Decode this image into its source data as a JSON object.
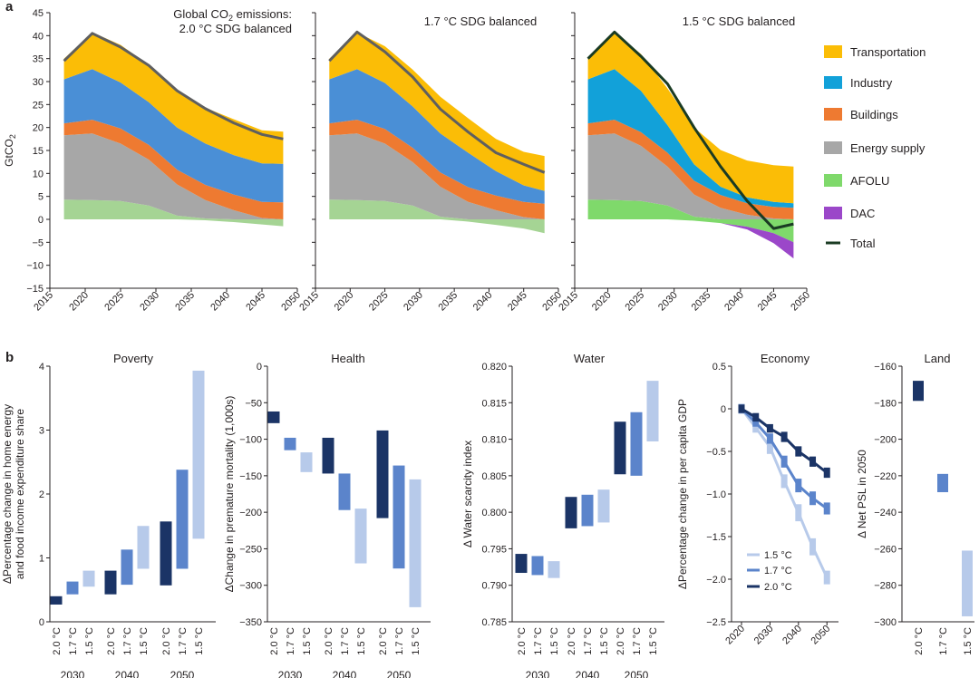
{
  "panel_a_label": "a",
  "panel_b_label": "b",
  "colors": {
    "Transportation": "#fbbd06",
    "Industry": "#4a8fd6",
    "Industry_15": "#12a1d9",
    "Buildings": "#ee7a31",
    "Energy supply": "#a7a7a7",
    "AFOLU": "#a5d494",
    "AFOLU_15": "#7fd96b",
    "DAC": "#9b47c9",
    "Total_line": "#5f5f5f",
    "Total_line_15": "#1a3b23",
    "dark": "#1b3466",
    "mid": "#5b84cb",
    "light": "#b7caea"
  },
  "chart_data": [
    {
      "type": "area",
      "id": "a1",
      "title_line1": "Global CO",
      "title_sub": "2",
      "title_line1_end": " emissions:",
      "title_line2": "2.0 °C SDG balanced",
      "ylabel": "GtCO",
      "ylabel_sub": "2",
      "ylim": [
        -15,
        45
      ],
      "yticks": [
        "−15",
        "−10",
        "−5",
        "0",
        "5",
        "10",
        "15",
        "20",
        "25",
        "30",
        "35",
        "40",
        "45"
      ],
      "xticks": [
        "2015",
        "2020",
        "2025",
        "2030",
        "2035",
        "2040",
        "2045",
        "2050"
      ],
      "x": [
        2017,
        2021,
        2025,
        2029,
        2033,
        2037,
        2041,
        2045,
        2048
      ],
      "stack_pos": {
        "AFOLU": [
          4.3,
          4.2,
          4.0,
          3.0,
          0.8,
          0.2,
          0.0,
          0.0,
          0.0
        ],
        "Energy supply": [
          14.0,
          14.5,
          12.5,
          10.0,
          6.8,
          4.0,
          2.0,
          0.3,
          0.0
        ],
        "Buildings": [
          2.6,
          3.0,
          3.3,
          3.2,
          3.2,
          3.3,
          3.4,
          3.5,
          3.7
        ],
        "Industry": [
          9.6,
          11.0,
          10.0,
          9.3,
          9.2,
          9.0,
          8.6,
          8.4,
          8.4
        ],
        "Transportation": [
          4.5,
          8.0,
          8.2,
          8.1,
          8.1,
          7.8,
          7.8,
          7.2,
          7.0
        ]
      },
      "stack_neg": {
        "AFOLU": [
          0,
          0,
          0,
          0,
          0,
          -0.2,
          -0.6,
          -1.1,
          -1.5
        ],
        "DAC": [
          0,
          0,
          0,
          0,
          0,
          0,
          0,
          0,
          0
        ]
      },
      "total": [
        34.5,
        40.5,
        37.5,
        33.5,
        28.0,
        24.1,
        21.0,
        18.5,
        17.5
      ]
    },
    {
      "type": "area",
      "id": "a2",
      "title": "1.7 °C SDG balanced",
      "ylim": [
        -15,
        45
      ],
      "xticks": [
        "2015",
        "2020",
        "2025",
        "2030",
        "2035",
        "2040",
        "2045",
        "2050"
      ],
      "x": [
        2017,
        2021,
        2025,
        2029,
        2033,
        2037,
        2041,
        2045,
        2048
      ],
      "stack_pos": {
        "AFOLU": [
          4.3,
          4.2,
          4.0,
          3.0,
          0.6,
          0.0,
          0.0,
          0.0,
          0.0
        ],
        "Energy supply": [
          14.0,
          14.5,
          12.5,
          9.5,
          6.5,
          3.8,
          2.0,
          0.5,
          0.0
        ],
        "Buildings": [
          2.6,
          3.0,
          3.2,
          3.1,
          3.1,
          3.2,
          3.2,
          3.3,
          3.4
        ],
        "Industry": [
          9.6,
          11.0,
          10.0,
          9.0,
          8.5,
          7.5,
          5.3,
          3.6,
          2.8
        ],
        "Transportation": [
          4.5,
          8.0,
          8.0,
          8.0,
          8.0,
          7.5,
          7.0,
          7.3,
          7.6
        ]
      },
      "stack_neg": {
        "AFOLU": [
          0,
          0,
          0,
          0,
          0,
          -0.5,
          -1.2,
          -2.0,
          -3.0
        ],
        "DAC": [
          0,
          0,
          0,
          0,
          0,
          0,
          0,
          0,
          0
        ]
      },
      "total": [
        34.5,
        40.8,
        36.5,
        31.0,
        24.0,
        19.0,
        14.5,
        12.0,
        10.2
      ]
    },
    {
      "type": "area",
      "id": "a3",
      "title": "1.5 °C SDG balanced",
      "ylim": [
        -15,
        45
      ],
      "xticks": [
        "2015",
        "2020",
        "2025",
        "2030",
        "2035",
        "2040",
        "2045",
        "2050"
      ],
      "x": [
        2017,
        2021,
        2025,
        2029,
        2033,
        2037,
        2041,
        2045,
        2048
      ],
      "stack_pos": {
        "AFOLU": [
          4.3,
          4.2,
          4.0,
          3.0,
          0.6,
          0.0,
          0.0,
          0.0,
          0.0
        ],
        "Energy supply": [
          14.0,
          14.5,
          12.0,
          8.5,
          4.8,
          2.5,
          1.0,
          0.2,
          0.0
        ],
        "Buildings": [
          2.6,
          3.0,
          3.0,
          3.0,
          3.0,
          2.8,
          2.5,
          2.5,
          2.5
        ],
        "Industry": [
          9.6,
          11.0,
          9.0,
          6.0,
          3.6,
          1.8,
          1.3,
          1.1,
          1.0
        ],
        "Transportation": [
          4.5,
          8.0,
          8.0,
          8.0,
          8.0,
          8.0,
          8.0,
          8.0,
          8.0
        ]
      },
      "stack_neg": {
        "AFOLU": [
          0,
          0,
          0,
          0,
          -0.3,
          -0.8,
          -1.6,
          -3.0,
          -5.0
        ],
        "DAC": [
          0,
          0,
          0,
          0,
          0,
          0,
          -0.6,
          -2.2,
          -3.5
        ]
      },
      "total": [
        35.0,
        40.8,
        35.5,
        29.5,
        20.0,
        11.5,
        4.0,
        -2.0,
        -1.0
      ],
      "legend": [
        "Transportation",
        "Industry",
        "Buildings",
        "Energy supply",
        "AFOLU",
        "DAC",
        "Total"
      ]
    },
    {
      "type": "bar",
      "id": "poverty",
      "title": "Poverty",
      "ylabel_line1": "ΔPercentage change in home energy",
      "ylabel_line2": "and food income expenditure share",
      "ylim": [
        0,
        4
      ],
      "yticks": [
        "0",
        "1",
        "2",
        "3",
        "4"
      ],
      "groups": [
        "2030",
        "2040",
        "2050"
      ],
      "series_labels": [
        "2.0 °C",
        "1.7 °C",
        "1.5 °C"
      ],
      "ranges": [
        [
          [
            0.27,
            0.4
          ],
          [
            0.43,
            0.63
          ],
          [
            0.55,
            0.8
          ]
        ],
        [
          [
            0.43,
            0.8
          ],
          [
            0.58,
            1.13
          ],
          [
            0.83,
            1.5
          ]
        ],
        [
          [
            0.57,
            1.57
          ],
          [
            0.83,
            2.38
          ],
          [
            1.3,
            3.93
          ]
        ]
      ]
    },
    {
      "type": "bar",
      "id": "health",
      "title": "Health",
      "ylabel": "ΔChange in premature mortality (1,000s)",
      "ylim": [
        -350,
        0
      ],
      "yticks": [
        "−350",
        "−300",
        "−250",
        "−200",
        "−150",
        "−100",
        "−50",
        "0"
      ],
      "groups": [
        "2030",
        "2040",
        "2050"
      ],
      "series_labels": [
        "2.0 °C",
        "1.7 °C",
        "1.5 °C"
      ],
      "ranges": [
        [
          [
            -78,
            -62
          ],
          [
            -115,
            -98
          ],
          [
            -145,
            -118
          ]
        ],
        [
          [
            -147,
            -98
          ],
          [
            -197,
            -147
          ],
          [
            -270,
            -195
          ]
        ],
        [
          [
            -208,
            -88
          ],
          [
            -277,
            -136
          ],
          [
            -330,
            -155
          ]
        ]
      ]
    },
    {
      "type": "bar",
      "id": "water",
      "title": "Water",
      "ylabel": "Δ Water scarcity index",
      "ylim": [
        0.785,
        0.82
      ],
      "yticks": [
        "0.785",
        "0.790",
        "0.795",
        "0.800",
        "0.805",
        "0.810",
        "0.815",
        "0.820"
      ],
      "groups": [
        "2030",
        "2040",
        "2050"
      ],
      "series_labels": [
        "2.0 °C",
        "1.7 °C",
        "1.5 °C"
      ],
      "ranges": [
        [
          [
            0.7917,
            0.7943
          ],
          [
            0.7914,
            0.794
          ],
          [
            0.791,
            0.7933
          ]
        ],
        [
          [
            0.7978,
            0.8021
          ],
          [
            0.7981,
            0.8024
          ],
          [
            0.7986,
            0.8031
          ]
        ],
        [
          [
            0.8052,
            0.8124
          ],
          [
            0.805,
            0.8137
          ],
          [
            0.8097,
            0.818
          ]
        ]
      ]
    },
    {
      "type": "line",
      "id": "economy",
      "title": "Economy",
      "ylabel": "ΔPercentage change in per capita GDP",
      "ylim": [
        -2.5,
        0.5
      ],
      "yticks": [
        "−2.5",
        "−2.0",
        "−1.5",
        "−1.0",
        "−0.5",
        "0",
        "0.5"
      ],
      "xticks": [
        "2020",
        "2030",
        "2040",
        "2050"
      ],
      "x": [
        2020,
        2025,
        2030,
        2035,
        2040,
        2045,
        2050
      ],
      "series": [
        {
          "name": "1.5 °C",
          "values": [
            0,
            -0.22,
            -0.45,
            -0.85,
            -1.22,
            -1.62,
            -1.98
          ],
          "range": [
            0.06,
            0.06,
            0.08,
            0.08,
            0.1,
            0.1,
            0.08
          ]
        },
        {
          "name": "1.7 °C",
          "values": [
            0,
            -0.16,
            -0.35,
            -0.62,
            -0.9,
            -1.05,
            -1.17
          ],
          "range": [
            0.05,
            0.05,
            0.06,
            0.07,
            0.08,
            0.08,
            0.07
          ]
        },
        {
          "name": "2.0 °C",
          "values": [
            0,
            -0.1,
            -0.23,
            -0.33,
            -0.5,
            -0.62,
            -0.75
          ],
          "range": [
            0.05,
            0.05,
            0.05,
            0.06,
            0.06,
            0.06,
            0.06
          ]
        }
      ]
    },
    {
      "type": "bar",
      "id": "land",
      "title": "Land",
      "ylabel": "Δ Net PSL in 2050",
      "ylim": [
        -300,
        -160
      ],
      "yticks": [
        "−300",
        "−280",
        "−260",
        "−240",
        "−220",
        "−200",
        "−180",
        "−160"
      ],
      "series_labels": [
        "2.0 °C",
        "1.7 °C",
        "1.5 °C"
      ],
      "ranges": [
        [
          -179,
          -168
        ],
        [
          -229,
          -219
        ],
        [
          -297,
          -261
        ]
      ]
    }
  ]
}
